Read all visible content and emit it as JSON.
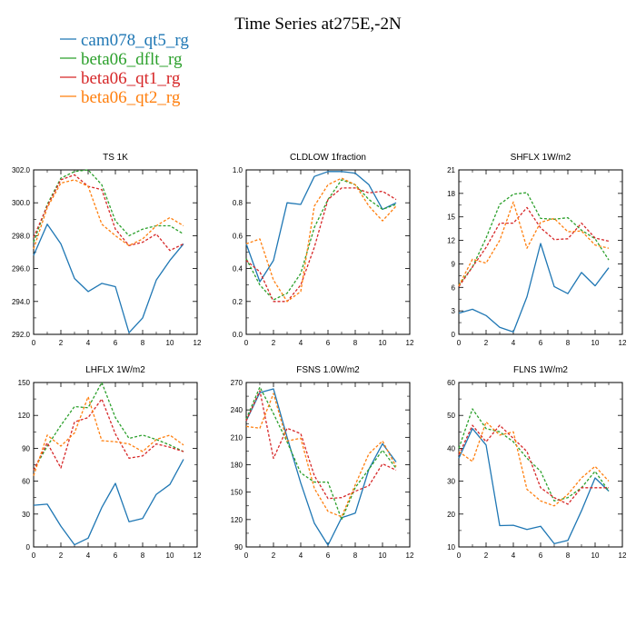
{
  "page_title": "Time Series at275E,-2N",
  "legend": [
    {
      "label": "cam078_qt5_rg",
      "color": "#1f77b4",
      "dash": false
    },
    {
      "label": "beta06_dflt_rg",
      "color": "#2ca02c",
      "dash": true
    },
    {
      "label": "beta06_qt1_rg",
      "color": "#d62728",
      "dash": true
    },
    {
      "label": "beta06_qt2_rg",
      "color": "#ff7f0e",
      "dash": true
    }
  ],
  "chart_data": [
    {
      "type": "line",
      "title": "TS   1K",
      "x": [
        0,
        1,
        2,
        3,
        4,
        5,
        6,
        7,
        8,
        9,
        10,
        11
      ],
      "xlim": [
        0,
        12
      ],
      "xticks": [
        "0",
        "2",
        "4",
        "6",
        "8",
        "10",
        "12"
      ],
      "ylim": [
        292,
        302
      ],
      "yticks": [
        "292.0",
        "294.0",
        "296.0",
        "298.0",
        "300.0",
        "302.0"
      ],
      "series": [
        {
          "name": "cam078_qt5_rg",
          "values": [
            296.8,
            298.7,
            297.5,
            295.4,
            294.6,
            295.1,
            294.9,
            292.1,
            293.0,
            295.3,
            296.5,
            297.5
          ]
        },
        {
          "name": "beta06_dflt_rg",
          "values": [
            297.6,
            299.9,
            301.5,
            301.9,
            302.0,
            301.1,
            298.9,
            298.0,
            298.4,
            298.6,
            298.6,
            298.1
          ]
        },
        {
          "name": "beta06_qt1_rg",
          "values": [
            297.9,
            299.8,
            301.4,
            301.7,
            301.0,
            300.8,
            298.4,
            297.4,
            297.6,
            298.1,
            297.1,
            297.5
          ]
        },
        {
          "name": "beta06_qt2_rg",
          "values": [
            297.2,
            299.7,
            301.2,
            301.4,
            301.0,
            298.7,
            298.0,
            297.4,
            297.8,
            298.6,
            299.1,
            298.6
          ]
        }
      ]
    },
    {
      "type": "line",
      "title": "CLDLOW   1fraction",
      "x": [
        0,
        1,
        2,
        3,
        4,
        5,
        6,
        7,
        8,
        9,
        10,
        11
      ],
      "xlim": [
        0,
        12
      ],
      "xticks": [
        "0",
        "2",
        "4",
        "6",
        "8",
        "10",
        "12"
      ],
      "ylim": [
        0,
        1
      ],
      "yticks": [
        "0.0",
        "0.2",
        "0.4",
        "0.6",
        "0.8",
        "1.0"
      ],
      "series": [
        {
          "name": "cam078_qt5_rg",
          "values": [
            0.55,
            0.32,
            0.45,
            0.8,
            0.79,
            0.96,
            0.99,
            0.99,
            0.98,
            0.91,
            0.76,
            0.8
          ]
        },
        {
          "name": "beta06_dflt_rg",
          "values": [
            0.46,
            0.3,
            0.21,
            0.25,
            0.37,
            0.65,
            0.82,
            0.94,
            0.91,
            0.82,
            0.76,
            0.79
          ]
        },
        {
          "name": "beta06_qt1_rg",
          "values": [
            0.45,
            0.38,
            0.2,
            0.2,
            0.3,
            0.53,
            0.82,
            0.89,
            0.89,
            0.86,
            0.87,
            0.82
          ]
        },
        {
          "name": "beta06_qt2_rg",
          "values": [
            0.55,
            0.58,
            0.33,
            0.2,
            0.26,
            0.78,
            0.91,
            0.95,
            0.91,
            0.78,
            0.69,
            0.78
          ]
        }
      ]
    },
    {
      "type": "line",
      "title": "SHFLX   1W/m2",
      "x": [
        0,
        1,
        2,
        3,
        4,
        5,
        6,
        7,
        8,
        9,
        10,
        11
      ],
      "xlim": [
        0,
        12
      ],
      "xticks": [
        "0",
        "2",
        "4",
        "6",
        "8",
        "10",
        "12"
      ],
      "ylim": [
        0,
        21
      ],
      "yticks": [
        "0",
        "3",
        "6",
        "9",
        "12",
        "15",
        "18",
        "21"
      ],
      "series": [
        {
          "name": "cam078_qt5_rg",
          "values": [
            2.7,
            3.2,
            2.4,
            0.9,
            0.3,
            4.8,
            11.6,
            6.1,
            5.2,
            7.9,
            6.2,
            8.5
          ]
        },
        {
          "name": "beta06_dflt_rg",
          "values": [
            6.3,
            8.6,
            12.3,
            16.6,
            17.9,
            18.1,
            14.8,
            14.7,
            14.9,
            13.3,
            12.2,
            9.5
          ]
        },
        {
          "name": "beta06_qt1_rg",
          "values": [
            6.1,
            8.6,
            11.1,
            14.2,
            14.2,
            16.2,
            13.6,
            12.1,
            12.2,
            14.2,
            12.3,
            11.9
          ]
        },
        {
          "name": "beta06_qt2_rg",
          "values": [
            6.2,
            9.6,
            9.1,
            12.0,
            16.9,
            11.0,
            14.3,
            14.8,
            13.1,
            13.2,
            11.4,
            11.0
          ]
        }
      ]
    },
    {
      "type": "line",
      "title": "LHFLX   1W/m2",
      "x": [
        0,
        1,
        2,
        3,
        4,
        5,
        6,
        7,
        8,
        9,
        10,
        11
      ],
      "xlim": [
        0,
        12
      ],
      "xticks": [
        "0",
        "2",
        "4",
        "6",
        "8",
        "10",
        "12"
      ],
      "ylim": [
        0,
        150
      ],
      "yticks": [
        "0",
        "30",
        "60",
        "90",
        "120",
        "150"
      ],
      "series": [
        {
          "name": "cam078_qt5_rg",
          "values": [
            38,
            39,
            19,
            2,
            8,
            36,
            58,
            23,
            26,
            48,
            57,
            80
          ]
        },
        {
          "name": "beta06_dflt_rg",
          "values": [
            70,
            92,
            111,
            128,
            127,
            150,
            118,
            99,
            102,
            98,
            93,
            87
          ]
        },
        {
          "name": "beta06_qt1_rg",
          "values": [
            70,
            95,
            72,
            114,
            118,
            135,
            103,
            81,
            83,
            94,
            91,
            87
          ]
        },
        {
          "name": "beta06_qt2_rg",
          "values": [
            65,
            102,
            92,
            104,
            137,
            97,
            96,
            94,
            87,
            98,
            102,
            93
          ]
        }
      ]
    },
    {
      "type": "line",
      "title": "FSNS   1.0W/m2",
      "x": [
        0,
        1,
        2,
        3,
        4,
        5,
        6,
        7,
        8,
        9,
        10,
        11
      ],
      "xlim": [
        0,
        12
      ],
      "xticks": [
        "0",
        "2",
        "4",
        "6",
        "8",
        "10",
        "12"
      ],
      "ylim": [
        90,
        270
      ],
      "yticks": [
        "90",
        "120",
        "150",
        "180",
        "210",
        "240",
        "270"
      ],
      "series": [
        {
          "name": "cam078_qt5_rg",
          "values": [
            228,
            259,
            263,
            210,
            160,
            116,
            92,
            122,
            127,
            175,
            203,
            183
          ]
        },
        {
          "name": "beta06_dflt_rg",
          "values": [
            230,
            265,
            236,
            205,
            171,
            161,
            161,
            120,
            155,
            175,
            196,
            176
          ]
        },
        {
          "name": "beta06_qt1_rg",
          "values": [
            228,
            261,
            187,
            220,
            214,
            168,
            143,
            144,
            151,
            157,
            181,
            174
          ]
        },
        {
          "name": "beta06_qt2_rg",
          "values": [
            222,
            220,
            258,
            206,
            209,
            154,
            129,
            123,
            158,
            192,
            206,
            178
          ]
        }
      ]
    },
    {
      "type": "line",
      "title": "FLNS   1W/m2",
      "x": [
        0,
        1,
        2,
        3,
        4,
        5,
        6,
        7,
        8,
        9,
        10,
        11
      ],
      "xlim": [
        0,
        12
      ],
      "xticks": [
        "0",
        "2",
        "4",
        "6",
        "8",
        "10",
        "12"
      ],
      "ylim": [
        10,
        60
      ],
      "yticks": [
        "10",
        "20",
        "30",
        "40",
        "50",
        "60"
      ],
      "series": [
        {
          "name": "cam078_qt5_rg",
          "values": [
            37,
            46,
            41,
            16.5,
            16.6,
            15.3,
            16.3,
            11,
            12,
            21,
            31,
            27
          ]
        },
        {
          "name": "beta06_dflt_rg",
          "values": [
            40,
            52,
            46,
            45,
            42,
            37,
            33,
            24,
            25,
            28,
            33,
            27
          ]
        },
        {
          "name": "beta06_qt1_rg",
          "values": [
            38,
            47,
            42,
            47,
            43,
            39,
            28,
            25,
            23,
            28,
            28,
            28
          ]
        },
        {
          "name": "beta06_qt2_rg",
          "values": [
            39,
            36,
            48,
            44,
            45,
            27.5,
            24,
            22.5,
            26,
            31,
            34.5,
            30
          ]
        }
      ]
    }
  ]
}
